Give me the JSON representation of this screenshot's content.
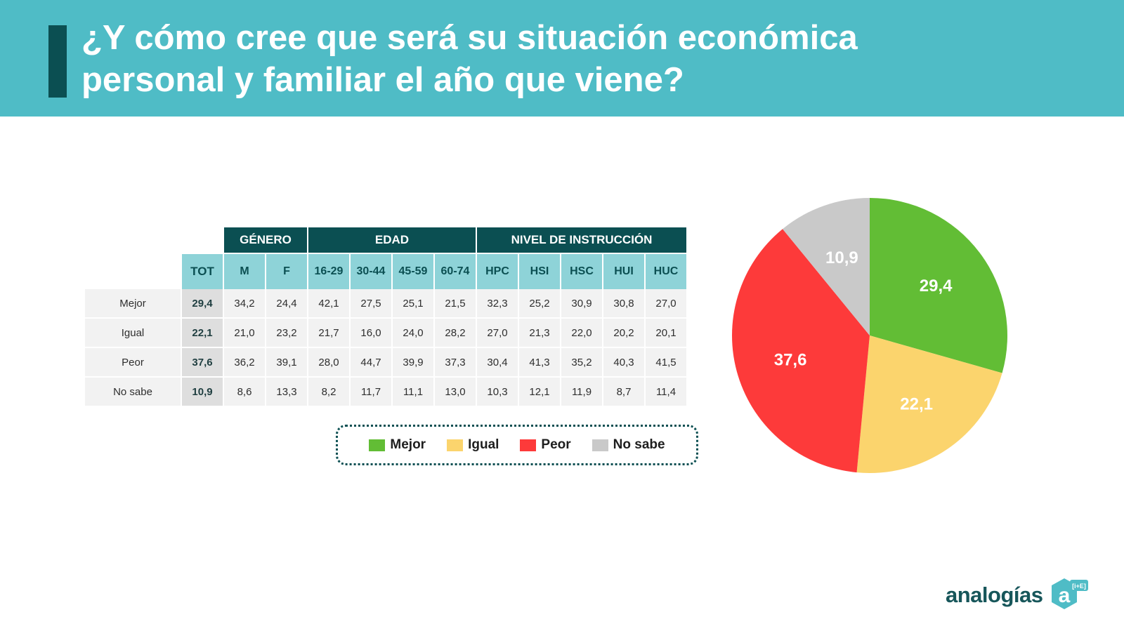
{
  "header": {
    "title_line1": "¿Y cómo cree que será su situación económica",
    "title_line2": "personal y familiar el año que viene?"
  },
  "table": {
    "groups": [
      "GÉNERO",
      "EDAD",
      "NIVEL DE INSTRUCCIÓN"
    ],
    "columns": [
      "TOT",
      "M",
      "F",
      "16-29",
      "30-44",
      "45-59",
      "60-74",
      "HPC",
      "HSI",
      "HSC",
      "HUI",
      "HUC"
    ],
    "rows": [
      {
        "label": "Mejor",
        "values": [
          "29,4",
          "34,2",
          "24,4",
          "42,1",
          "27,5",
          "25,1",
          "21,5",
          "32,3",
          "25,2",
          "30,9",
          "30,8",
          "27,0"
        ]
      },
      {
        "label": "Igual",
        "values": [
          "22,1",
          "21,0",
          "23,2",
          "21,7",
          "16,0",
          "24,0",
          "28,2",
          "27,0",
          "21,3",
          "22,0",
          "20,2",
          "20,1"
        ]
      },
      {
        "label": "Peor",
        "values": [
          "37,6",
          "36,2",
          "39,1",
          "28,0",
          "44,7",
          "39,9",
          "37,3",
          "30,4",
          "41,3",
          "35,2",
          "40,3",
          "41,5"
        ]
      },
      {
        "label": "No sabe",
        "values": [
          "10,9",
          "8,6",
          "13,3",
          "8,2",
          "11,7",
          "11,1",
          "13,0",
          "10,3",
          "12,1",
          "11,9",
          "8,7",
          "11,4"
        ]
      }
    ]
  },
  "legend": [
    {
      "label": "Mejor",
      "color": "#62bd35"
    },
    {
      "label": "Igual",
      "color": "#fbd46d"
    },
    {
      "label": "Peor",
      "color": "#fd3a3a"
    },
    {
      "label": "No sabe",
      "color": "#c9c9c9"
    }
  ],
  "chart_data": {
    "type": "pie",
    "slices": [
      {
        "name": "Mejor",
        "value": 29.4,
        "label": "29,4",
        "color": "#62bd35"
      },
      {
        "name": "Igual",
        "value": 22.1,
        "label": "22,1",
        "color": "#fbd46d"
      },
      {
        "name": "Peor",
        "value": 37.6,
        "label": "37,6",
        "color": "#fd3a3a"
      },
      {
        "name": "No sabe",
        "value": 10.9,
        "label": "10,9",
        "color": "#c9c9c9"
      }
    ],
    "legend_position": "left-below-table"
  },
  "logo": {
    "text": "analogías",
    "badge_letter": "a",
    "badge_sub": "[i+E]",
    "color": "#4fbcc6"
  }
}
